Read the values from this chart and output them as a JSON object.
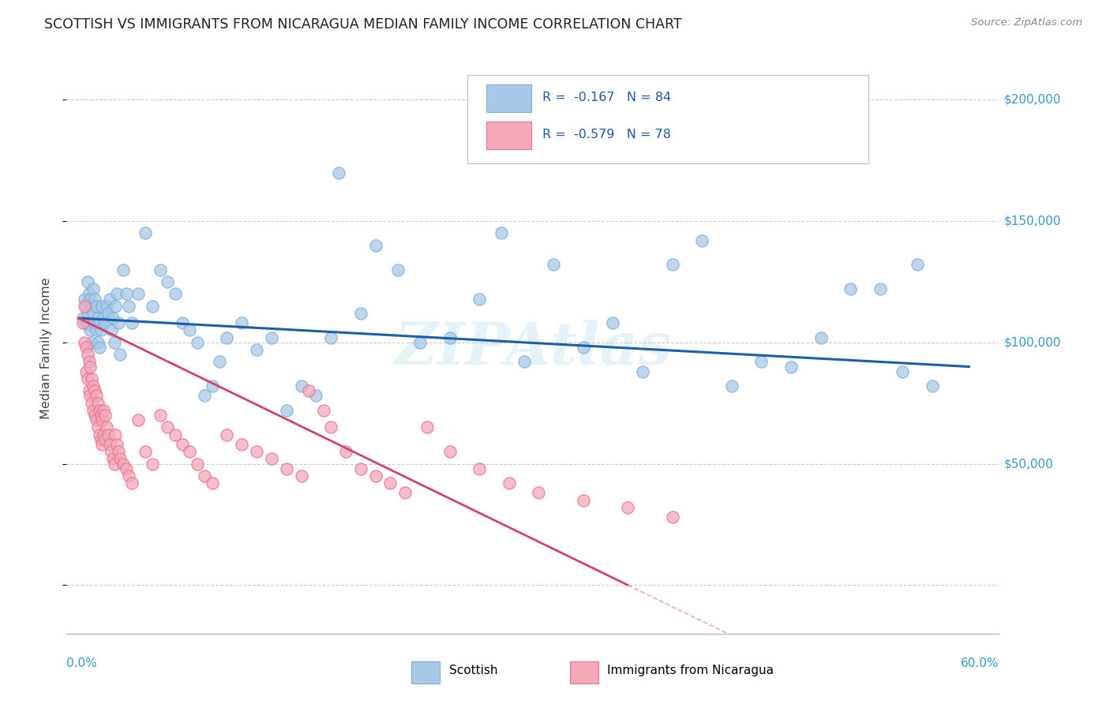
{
  "title": "SCOTTISH VS IMMIGRANTS FROM NICARAGUA MEDIAN FAMILY INCOME CORRELATION CHART",
  "source": "Source: ZipAtlas.com",
  "ylabel": "Median Family Income",
  "watermark": "ZIPAtlas",
  "series1_color": "#a8c8e8",
  "series1_edge": "#7aafd4",
  "series2_color": "#f4a8b8",
  "series2_edge": "#e87090",
  "trendline1_color": "#1a5fa8",
  "trendline2_color": "#d44070",
  "series1_name": "Scottish",
  "series2_name": "Immigrants from Nicaragua",
  "title_color": "#222222",
  "source_color": "#888888",
  "ylabel_color": "#444444",
  "axis_label_color": "#3399cc",
  "grid_color": "#cccccc",
  "legend_text_color": "#2255aa",
  "legend_R1": "R =  -0.167",
  "legend_N1": "N = 84",
  "legend_R2": "R =  -0.579",
  "legend_N2": "N = 78"
}
